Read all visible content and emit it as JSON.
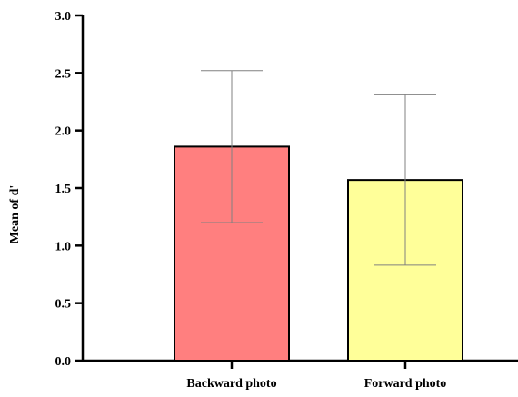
{
  "chart_data": {
    "type": "bar",
    "title": "",
    "xlabel": "",
    "ylabel": "Mean of d'",
    "ylim": [
      0,
      3.0
    ],
    "yticks": [
      "0.0",
      "0.5",
      "1.0",
      "1.5",
      "2.0",
      "2.5",
      "3.0"
    ],
    "grid": false,
    "legend": "none",
    "categories": [
      "Backward photo",
      "Forward photo"
    ],
    "values": [
      1.86,
      1.57
    ],
    "error_upper": [
      2.52,
      2.31
    ],
    "error_lower": [
      1.2,
      0.83
    ],
    "bar_colors": [
      "#ff7f7f",
      "#ffff99"
    ],
    "bar_edge_color": "#000000",
    "error_bar_color": "#808080"
  }
}
